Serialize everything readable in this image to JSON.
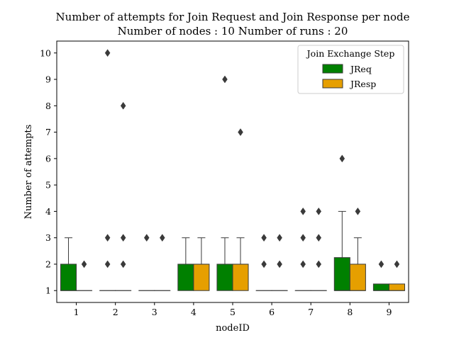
{
  "chart_data": {
    "type": "box",
    "title": "Number of attempts for Join Request and Join Response per node",
    "subtitle": "Number of nodes : 10   Number of runs : 20",
    "xlabel": "nodeID",
    "ylabel": "Number of attempts",
    "categories": [
      "1",
      "2",
      "3",
      "4",
      "5",
      "6",
      "7",
      "8",
      "9"
    ],
    "ylim": [
      0.55,
      10.45
    ],
    "yticks": [
      1,
      2,
      3,
      4,
      5,
      6,
      7,
      8,
      9,
      10
    ],
    "grid": false,
    "legend": {
      "title": "Join Exchange Step",
      "placement": "top-right"
    },
    "series": [
      {
        "name": "JReq",
        "color": "#008000",
        "boxes": [
          {
            "q1": 1,
            "median": 1,
            "q3": 2,
            "whisker_low": 1,
            "whisker_high": 3,
            "outliers": []
          },
          {
            "q1": 1,
            "median": 1,
            "q3": 1,
            "whisker_low": 1,
            "whisker_high": 1,
            "outliers": [
              2,
              3,
              10
            ]
          },
          {
            "q1": 1,
            "median": 1,
            "q3": 1,
            "whisker_low": 1,
            "whisker_high": 1,
            "outliers": [
              3
            ]
          },
          {
            "q1": 1,
            "median": 2,
            "q3": 2,
            "whisker_low": 1,
            "whisker_high": 3,
            "outliers": []
          },
          {
            "q1": 1,
            "median": 2,
            "q3": 2,
            "whisker_low": 1,
            "whisker_high": 3,
            "outliers": [
              9
            ]
          },
          {
            "q1": 1,
            "median": 1,
            "q3": 1,
            "whisker_low": 1,
            "whisker_high": 1,
            "outliers": [
              2,
              3
            ]
          },
          {
            "q1": 1,
            "median": 1,
            "q3": 1,
            "whisker_low": 1,
            "whisker_high": 1,
            "outliers": [
              2,
              3,
              4
            ]
          },
          {
            "q1": 1,
            "median": 1,
            "q3": 2.25,
            "whisker_low": 1,
            "whisker_high": 4,
            "outliers": [
              6
            ]
          },
          {
            "q1": 1,
            "median": 1,
            "q3": 1.25,
            "whisker_low": 1,
            "whisker_high": 1.25,
            "outliers": [
              2
            ]
          }
        ]
      },
      {
        "name": "JResp",
        "color": "#e69f00",
        "boxes": [
          {
            "q1": 1,
            "median": 1,
            "q3": 1,
            "whisker_low": 1,
            "whisker_high": 1,
            "outliers": [
              2
            ]
          },
          {
            "q1": 1,
            "median": 1,
            "q3": 1,
            "whisker_low": 1,
            "whisker_high": 1,
            "outliers": [
              2,
              3,
              8
            ]
          },
          {
            "q1": 1,
            "median": 1,
            "q3": 1,
            "whisker_low": 1,
            "whisker_high": 1,
            "outliers": [
              3
            ]
          },
          {
            "q1": 1,
            "median": 2,
            "q3": 2,
            "whisker_low": 1,
            "whisker_high": 3,
            "outliers": []
          },
          {
            "q1": 1,
            "median": 2,
            "q3": 2,
            "whisker_low": 1,
            "whisker_high": 3,
            "outliers": [
              7
            ]
          },
          {
            "q1": 1,
            "median": 1,
            "q3": 1,
            "whisker_low": 1,
            "whisker_high": 1,
            "outliers": [
              2,
              3
            ]
          },
          {
            "q1": 1,
            "median": 1,
            "q3": 1,
            "whisker_low": 1,
            "whisker_high": 1,
            "outliers": [
              2,
              3,
              4
            ]
          },
          {
            "q1": 1,
            "median": 1,
            "q3": 2,
            "whisker_low": 1,
            "whisker_high": 3,
            "outliers": [
              4
            ]
          },
          {
            "q1": 1,
            "median": 1,
            "q3": 1.25,
            "whisker_low": 1,
            "whisker_high": 1.25,
            "outliers": [
              2
            ]
          }
        ]
      }
    ]
  }
}
